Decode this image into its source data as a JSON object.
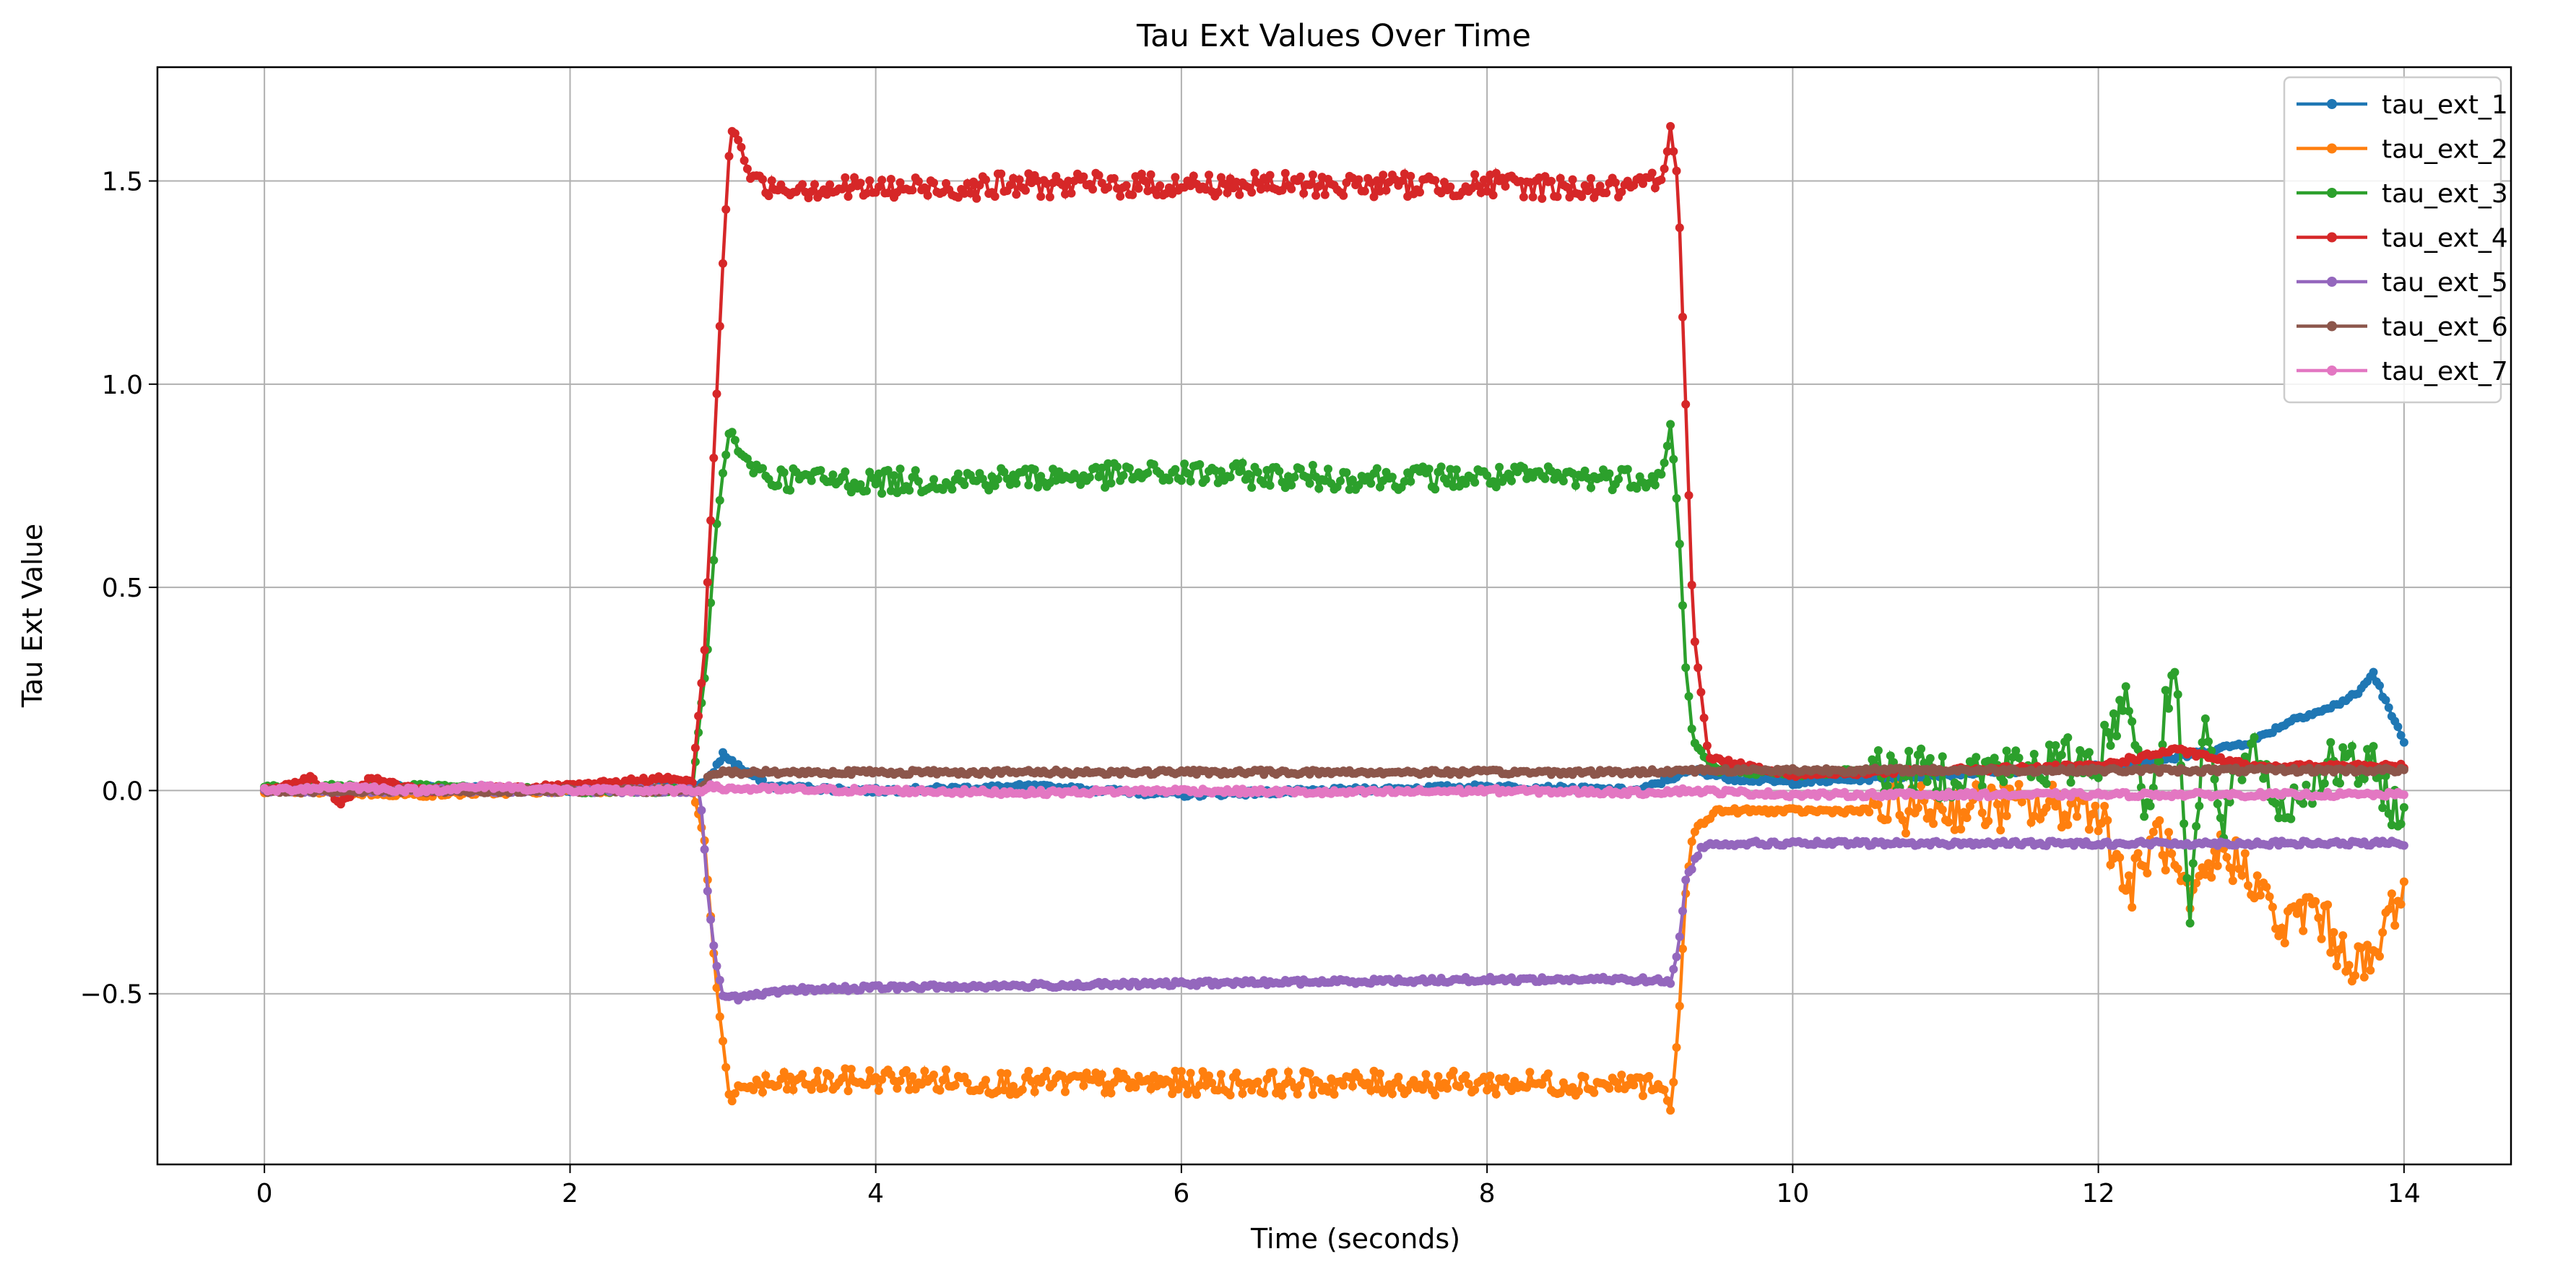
{
  "chart_data": {
    "type": "line",
    "title": "Tau Ext Values Over Time",
    "xlabel": "Time (seconds)",
    "ylabel": "Tau Ext Value",
    "xlim": [
      -0.7,
      14.7
    ],
    "ylim": [
      -0.92,
      1.78
    ],
    "x_ticks": [
      0,
      2,
      4,
      6,
      8,
      10,
      12,
      14
    ],
    "x_tick_labels": [
      "0",
      "2",
      "4",
      "6",
      "8",
      "10",
      "12",
      "14"
    ],
    "y_ticks": [
      -0.5,
      0.0,
      0.5,
      1.0,
      1.5
    ],
    "y_tick_labels": [
      "−0.5",
      "0.0",
      "0.5",
      "1.0",
      "1.5"
    ],
    "grid": true,
    "legend_position": "top-right",
    "marker": "circle",
    "series": [
      {
        "name": "tau_ext_1",
        "color": "#1f77b4",
        "points": [
          [
            0,
            0.0
          ],
          [
            1,
            0.01
          ],
          [
            2,
            0.0
          ],
          [
            2.7,
            0.01
          ],
          [
            2.9,
            0.02
          ],
          [
            3.0,
            0.09
          ],
          [
            3.1,
            0.06
          ],
          [
            3.3,
            0.01
          ],
          [
            4,
            0.0
          ],
          [
            5,
            0.01
          ],
          [
            6,
            -0.01
          ],
          [
            7,
            0.0
          ],
          [
            8,
            0.01
          ],
          [
            9,
            0.0
          ],
          [
            9.2,
            0.03
          ],
          [
            9.35,
            0.05
          ],
          [
            9.6,
            0.03
          ],
          [
            10,
            0.02
          ],
          [
            10.5,
            0.03
          ],
          [
            11,
            0.04
          ],
          [
            11.5,
            0.05
          ],
          [
            12,
            0.06
          ],
          [
            12.5,
            0.08
          ],
          [
            13.0,
            0.12
          ],
          [
            13.3,
            0.18
          ],
          [
            13.5,
            0.2
          ],
          [
            13.7,
            0.24
          ],
          [
            13.8,
            0.29
          ],
          [
            13.9,
            0.2
          ],
          [
            14.0,
            0.12
          ]
        ]
      },
      {
        "name": "tau_ext_2",
        "color": "#ff7f0e",
        "points": [
          [
            0,
            0.0
          ],
          [
            1,
            -0.01
          ],
          [
            2,
            0.0
          ],
          [
            2.8,
            0.0
          ],
          [
            2.88,
            -0.12
          ],
          [
            2.95,
            -0.45
          ],
          [
            3.0,
            -0.62
          ],
          [
            3.05,
            -0.78
          ],
          [
            3.1,
            -0.73
          ],
          [
            3.5,
            -0.72
          ],
          [
            4,
            -0.71
          ],
          [
            5,
            -0.72
          ],
          [
            6,
            -0.72
          ],
          [
            7,
            -0.72
          ],
          [
            8,
            -0.72
          ],
          [
            9,
            -0.72
          ],
          [
            9.15,
            -0.73
          ],
          [
            9.2,
            -0.79
          ],
          [
            9.25,
            -0.6
          ],
          [
            9.3,
            -0.25
          ],
          [
            9.35,
            -0.1
          ],
          [
            9.5,
            -0.05
          ],
          [
            10,
            -0.05
          ],
          [
            10.5,
            -0.05
          ],
          [
            11,
            -0.04
          ],
          [
            11.5,
            -0.04
          ],
          [
            12,
            -0.04
          ],
          [
            12.2,
            -0.25
          ],
          [
            12.4,
            -0.1
          ],
          [
            12.6,
            -0.3
          ],
          [
            12.8,
            -0.15
          ],
          [
            13.0,
            -0.2
          ],
          [
            13.2,
            -0.35
          ],
          [
            13.4,
            -0.28
          ],
          [
            13.6,
            -0.4
          ],
          [
            13.8,
            -0.44
          ],
          [
            13.9,
            -0.3
          ],
          [
            14.0,
            -0.24
          ]
        ]
      },
      {
        "name": "tau_ext_3",
        "color": "#2ca02c",
        "points": [
          [
            0,
            0.01
          ],
          [
            1,
            0.01
          ],
          [
            2,
            0.0
          ],
          [
            2.8,
            0.0
          ],
          [
            2.9,
            0.35
          ],
          [
            2.95,
            0.62
          ],
          [
            3.0,
            0.78
          ],
          [
            3.05,
            0.9
          ],
          [
            3.1,
            0.83
          ],
          [
            3.3,
            0.77
          ],
          [
            4,
            0.76
          ],
          [
            5,
            0.77
          ],
          [
            6,
            0.78
          ],
          [
            7,
            0.77
          ],
          [
            8,
            0.77
          ],
          [
            9,
            0.77
          ],
          [
            9.15,
            0.78
          ],
          [
            9.2,
            0.9
          ],
          [
            9.25,
            0.68
          ],
          [
            9.3,
            0.3
          ],
          [
            9.35,
            0.12
          ],
          [
            9.5,
            0.05
          ],
          [
            10,
            0.04
          ],
          [
            10.5,
            0.05
          ],
          [
            11,
            0.04
          ],
          [
            11.5,
            0.06
          ],
          [
            12,
            0.08
          ],
          [
            12.2,
            0.25
          ],
          [
            12.3,
            -0.05
          ],
          [
            12.4,
            0.1
          ],
          [
            12.5,
            0.32
          ],
          [
            12.6,
            -0.28
          ],
          [
            12.7,
            0.18
          ],
          [
            12.8,
            -0.1
          ],
          [
            13.0,
            0.12
          ],
          [
            13.2,
            -0.05
          ],
          [
            13.5,
            0.06
          ],
          [
            13.8,
            0.05
          ],
          [
            14.0,
            -0.08
          ]
        ]
      },
      {
        "name": "tau_ext_4",
        "color": "#d62728",
        "points": [
          [
            0,
            0.0
          ],
          [
            0.3,
            0.03
          ],
          [
            0.5,
            -0.03
          ],
          [
            0.7,
            0.03
          ],
          [
            1,
            0.0
          ],
          [
            2,
            0.01
          ],
          [
            2.6,
            0.03
          ],
          [
            2.8,
            0.02
          ],
          [
            2.88,
            0.35
          ],
          [
            2.95,
            0.9
          ],
          [
            3.0,
            1.3
          ],
          [
            3.05,
            1.63
          ],
          [
            3.1,
            1.6
          ],
          [
            3.2,
            1.49
          ],
          [
            4,
            1.48
          ],
          [
            5,
            1.49
          ],
          [
            6,
            1.49
          ],
          [
            7,
            1.49
          ],
          [
            8,
            1.49
          ],
          [
            9,
            1.48
          ],
          [
            9.15,
            1.5
          ],
          [
            9.2,
            1.63
          ],
          [
            9.25,
            1.5
          ],
          [
            9.3,
            0.95
          ],
          [
            9.35,
            0.4
          ],
          [
            9.45,
            0.08
          ],
          [
            10,
            0.04
          ],
          [
            11,
            0.05
          ],
          [
            12,
            0.06
          ],
          [
            12.5,
            0.1
          ],
          [
            13,
            0.06
          ],
          [
            14,
            0.06
          ]
        ]
      },
      {
        "name": "tau_ext_5",
        "color": "#9467bd",
        "points": [
          [
            0,
            0.0
          ],
          [
            1,
            0.0
          ],
          [
            2,
            0.0
          ],
          [
            2.85,
            0.0
          ],
          [
            2.9,
            -0.25
          ],
          [
            2.95,
            -0.42
          ],
          [
            3.0,
            -0.5
          ],
          [
            3.1,
            -0.51
          ],
          [
            3.5,
            -0.49
          ],
          [
            4,
            -0.485
          ],
          [
            5,
            -0.48
          ],
          [
            6,
            -0.475
          ],
          [
            7,
            -0.47
          ],
          [
            8,
            -0.465
          ],
          [
            9,
            -0.465
          ],
          [
            9.2,
            -0.47
          ],
          [
            9.25,
            -0.4
          ],
          [
            9.3,
            -0.22
          ],
          [
            9.4,
            -0.14
          ],
          [
            9.5,
            -0.13
          ],
          [
            10,
            -0.13
          ],
          [
            11,
            -0.13
          ],
          [
            12,
            -0.13
          ],
          [
            13,
            -0.13
          ],
          [
            14,
            -0.13
          ]
        ]
      },
      {
        "name": "tau_ext_6",
        "color": "#8c564b",
        "points": [
          [
            0,
            0.0
          ],
          [
            1,
            0.0
          ],
          [
            2,
            0.0
          ],
          [
            2.85,
            0.0
          ],
          [
            2.9,
            0.03
          ],
          [
            3.0,
            0.045
          ],
          [
            4,
            0.045
          ],
          [
            5,
            0.045
          ],
          [
            6,
            0.045
          ],
          [
            7,
            0.045
          ],
          [
            8,
            0.045
          ],
          [
            9,
            0.045
          ],
          [
            9.3,
            0.05
          ],
          [
            10,
            0.05
          ],
          [
            11,
            0.05
          ],
          [
            12,
            0.05
          ],
          [
            13,
            0.05
          ],
          [
            14,
            0.05
          ]
        ]
      },
      {
        "name": "tau_ext_7",
        "color": "#e377c2",
        "points": [
          [
            0,
            0.0
          ],
          [
            0.5,
            0.01
          ],
          [
            1,
            0.0
          ],
          [
            1.5,
            0.01
          ],
          [
            2,
            0.0
          ],
          [
            2.85,
            0.0
          ],
          [
            2.9,
            0.01
          ],
          [
            3.0,
            0.005
          ],
          [
            4,
            0.0
          ],
          [
            5,
            -0.005
          ],
          [
            6,
            0.0
          ],
          [
            7,
            -0.005
          ],
          [
            8,
            0.0
          ],
          [
            9,
            -0.005
          ],
          [
            9.3,
            0.0
          ],
          [
            10,
            -0.01
          ],
          [
            11,
            -0.01
          ],
          [
            12,
            -0.01
          ],
          [
            13,
            -0.01
          ],
          [
            14,
            -0.01
          ]
        ]
      }
    ]
  }
}
